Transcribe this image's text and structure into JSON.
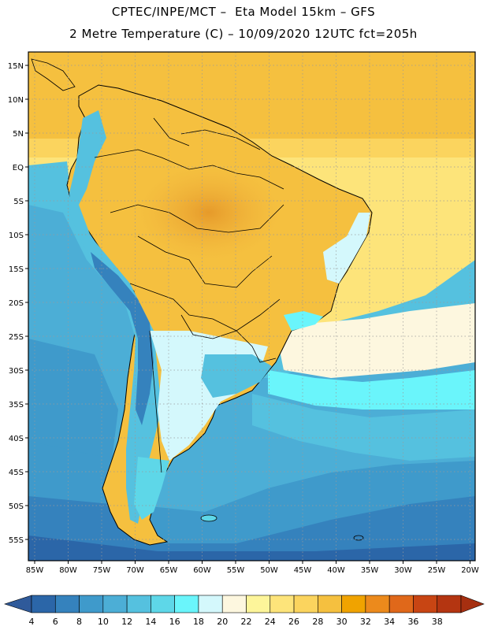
{
  "header": {
    "line1": "CPTEC/INPE/MCT –  Eta Model 15km – GFS",
    "line2": "2 Metre Temperature (C) – 10/09/2020 12UTC fct=205h"
  },
  "map": {
    "region": "South America",
    "lon_ticks": [
      "85W",
      "80W",
      "75W",
      "70W",
      "65W",
      "60W",
      "55W",
      "50W",
      "45W",
      "40W",
      "35W",
      "30W",
      "25W",
      "20W"
    ],
    "lat_ticks": [
      "15N",
      "10N",
      "5N",
      "EQ",
      "5S",
      "10S",
      "15S",
      "20S",
      "25S",
      "30S",
      "35S",
      "40S",
      "45S",
      "50S",
      "55S"
    ],
    "lon_range": [
      -86,
      -19
    ],
    "lat_range": [
      17,
      -59
    ],
    "grid": "dotted"
  },
  "colorbar": {
    "values": [
      "4",
      "6",
      "8",
      "10",
      "12",
      "14",
      "16",
      "18",
      "20",
      "22",
      "24",
      "26",
      "28",
      "30",
      "32",
      "34",
      "36",
      "38"
    ],
    "colors": [
      "#2b66a8",
      "#3582bd",
      "#3f9acb",
      "#4caed6",
      "#55c1df",
      "#5ed7e8",
      "#6af5fb",
      "#d4f8fc",
      "#fdf7df",
      "#fdf59a",
      "#fde47a",
      "#fbd45e",
      "#f5c03f",
      "#f0a300",
      "#ec8a1c",
      "#e0681a",
      "#c84513",
      "#b43511"
    ],
    "under_color": "#2f5a9a",
    "over_color": "#a62f10"
  }
}
